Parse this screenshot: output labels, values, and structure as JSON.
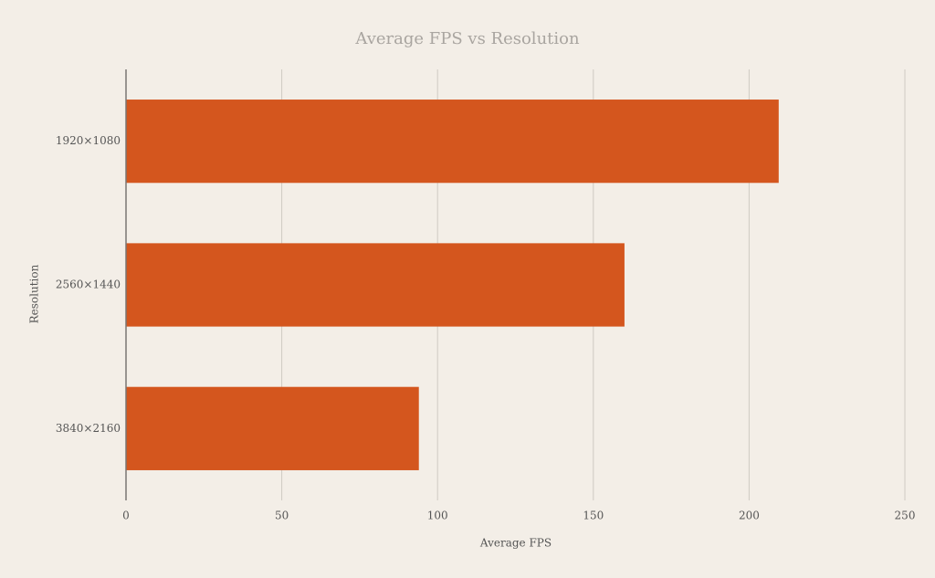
{
  "chart_data": {
    "type": "hbar",
    "title": "Average FPS vs Resolution",
    "x_label": "Average FPS",
    "y_label": "Resolution",
    "categories": [
      "1920×1080",
      "2560×1440",
      "3840×2160"
    ],
    "values": [
      209.5,
      160,
      94
    ],
    "color": "#d4561e",
    "xlim": [
      0,
      250
    ],
    "xticks": [
      0,
      50,
      100,
      150,
      200,
      250
    ],
    "grid": true
  }
}
